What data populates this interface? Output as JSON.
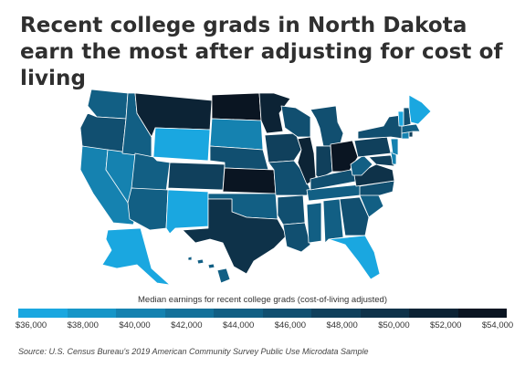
{
  "title": "Recent college grads in North Dakota earn the most after adjusting for cost of living",
  "legend": {
    "caption": "Median earnings for recent college grads (cost-of-living adjusted)",
    "labels": [
      "$36,000",
      "$38,000",
      "$40,000",
      "$42,000",
      "$44,000",
      "$46,000",
      "$48,000",
      "$50,000",
      "$52,000",
      "$54,000"
    ],
    "colors": [
      "#1aa7e0",
      "#1696c8",
      "#1582b0",
      "#14719a",
      "#125f84",
      "#114f70",
      "#10405c",
      "#0e3249",
      "#0c2335",
      "#0a1522"
    ]
  },
  "source": "Source: U.S. Census Bureau's 2019 American Community Survey Public Use Microdata Sample",
  "colors": {
    "state_border": "#ffffff",
    "title_text": "#2f2f2f"
  }
}
